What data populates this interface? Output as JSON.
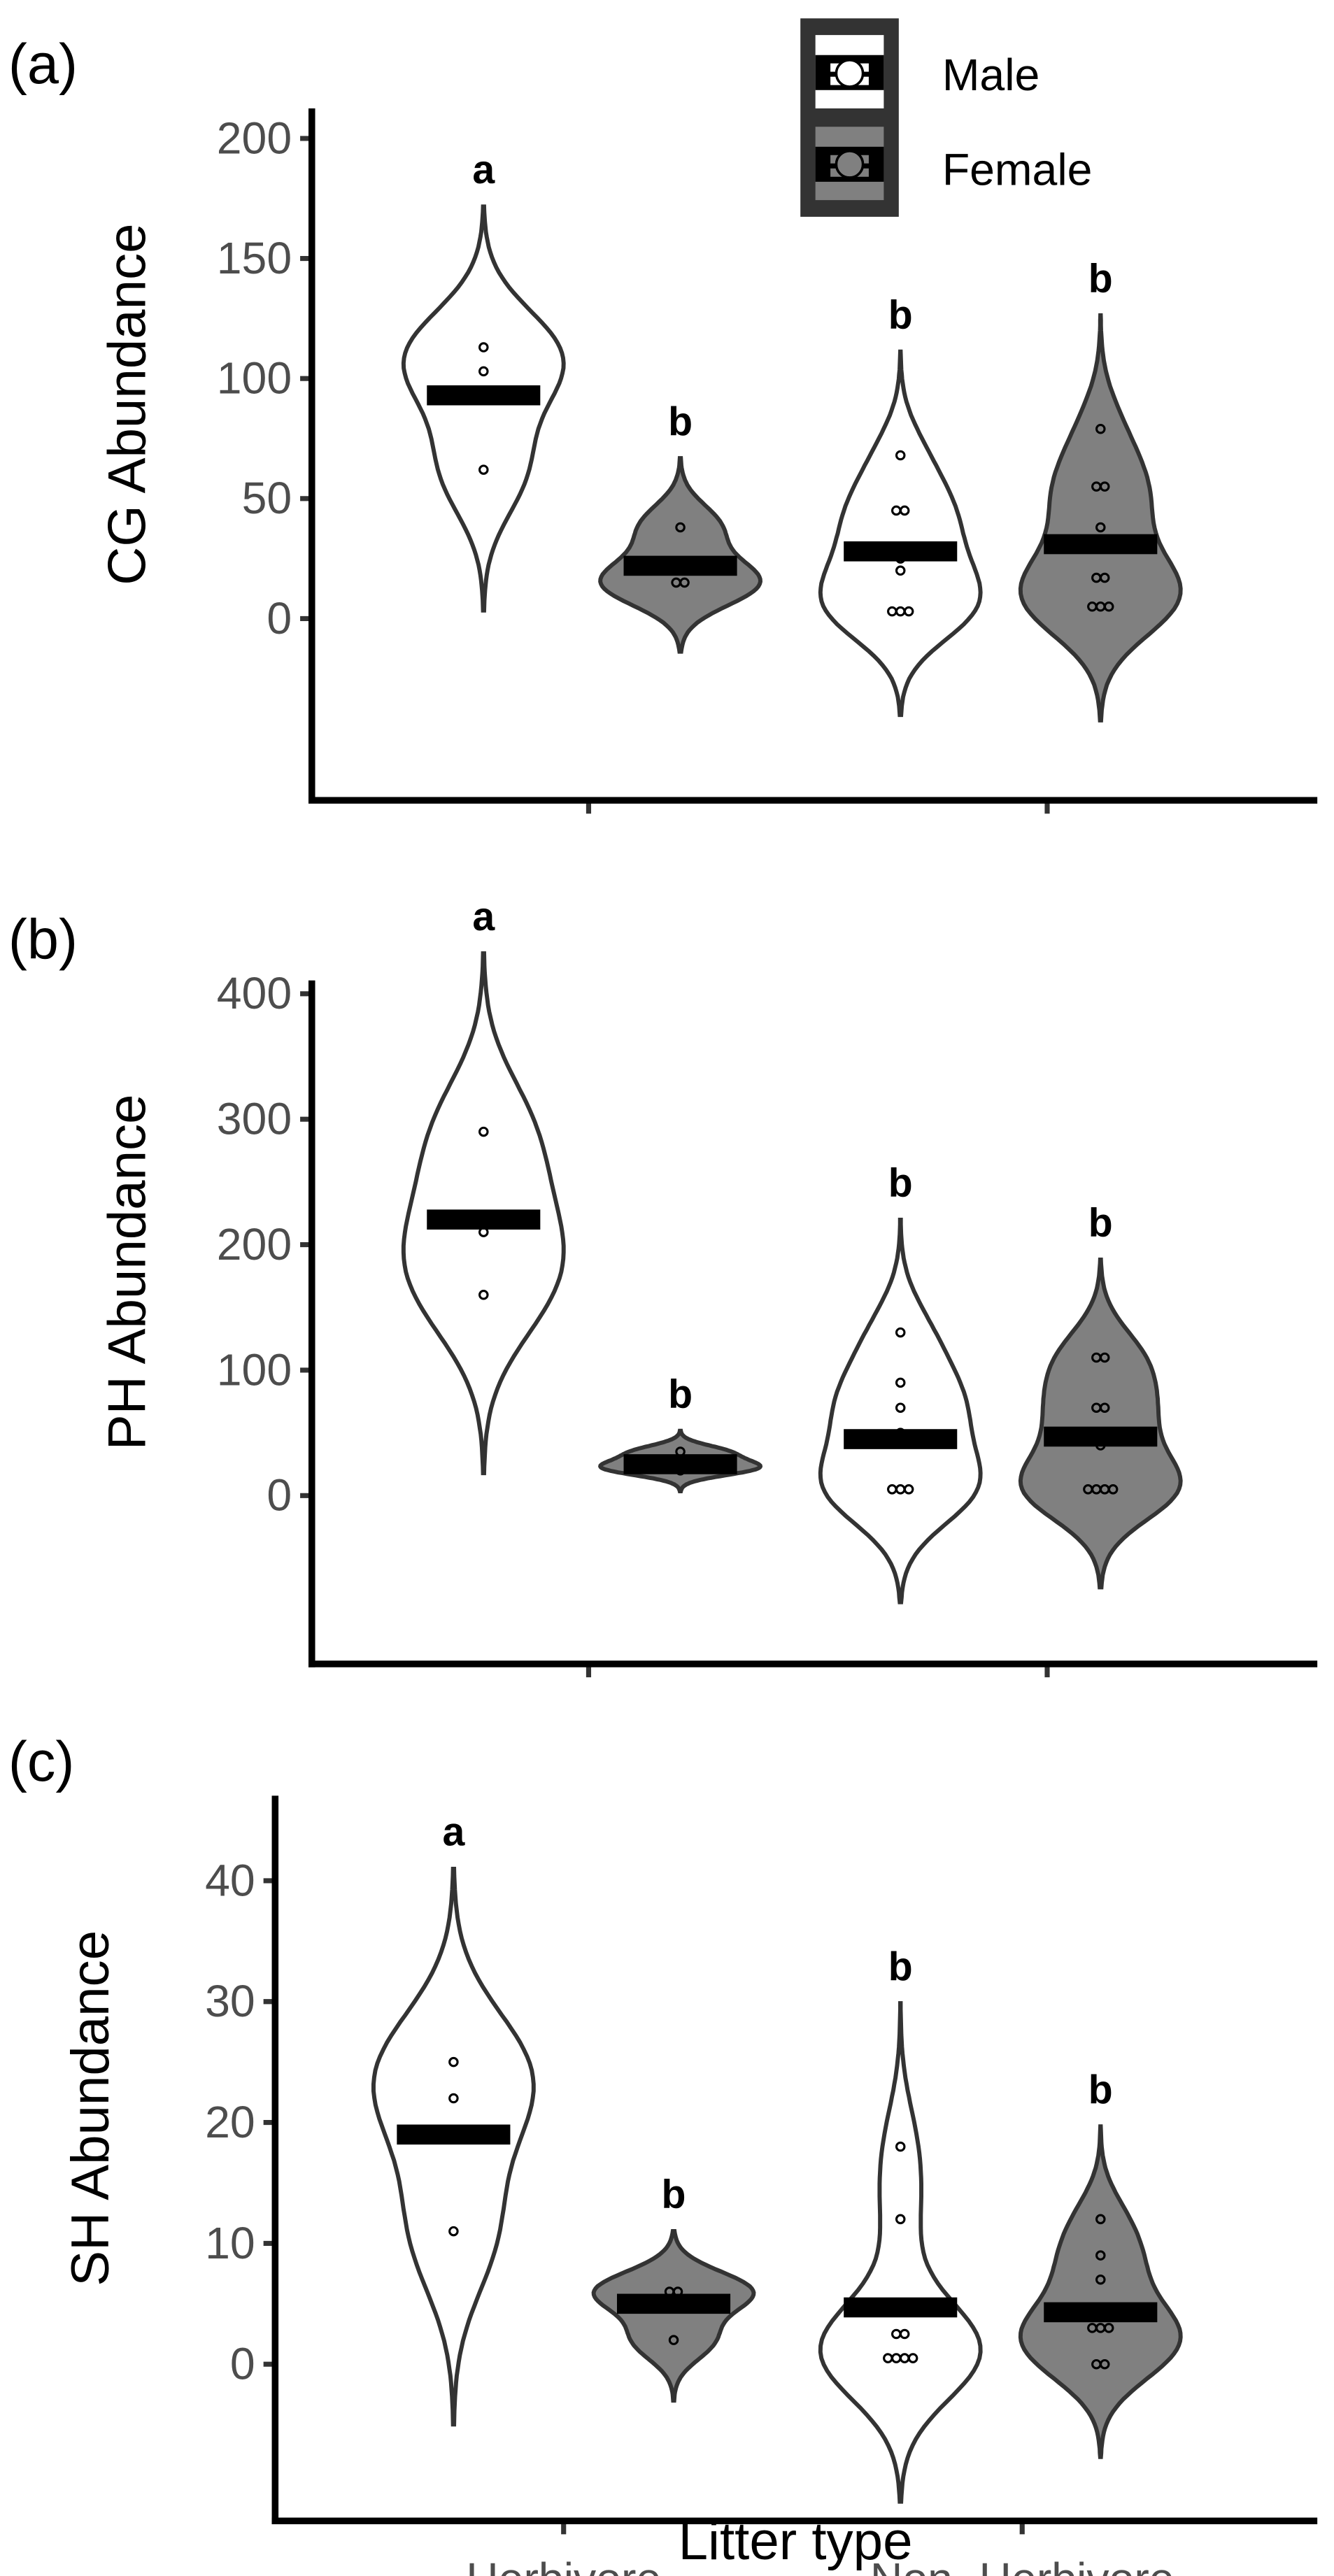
{
  "legend": {
    "items": [
      {
        "label": "Male",
        "fill": "#ffffff"
      },
      {
        "label": "Female",
        "fill": "#808080"
      }
    ]
  },
  "colors": {
    "male": "#ffffff",
    "female": "#808080",
    "outline": "#333333",
    "median": "#000000"
  },
  "chart_data": [
    {
      "type": "violin",
      "panel_label": "(a)",
      "ylabel": "CG Abundance",
      "xlabel": "",
      "ylim": [
        -45,
        210
      ],
      "yticks": [
        0,
        50,
        100,
        150,
        200
      ],
      "categories": [
        "Herbivore",
        "Non−Herbivore"
      ],
      "series": [
        {
          "name": "Male",
          "groups": [
            {
              "category": "Herbivore",
              "median": 93,
              "letter": "a",
              "points": [
                62,
                103,
                113
              ]
            },
            {
              "category": "Non−Herbivore",
              "median": 28,
              "letter": "b",
              "points": [
                3,
                3,
                3,
                20,
                25,
                45,
                45,
                68
              ]
            }
          ]
        },
        {
          "name": "Female",
          "groups": [
            {
              "category": "Herbivore",
              "median": 22,
              "letter": "b",
              "points": [
                15,
                15,
                38
              ]
            },
            {
              "category": "Non−Herbivore",
              "median": 31,
              "letter": "b",
              "points": [
                5,
                5,
                5,
                17,
                17,
                38,
                55,
                55,
                79
              ]
            }
          ]
        }
      ]
    },
    {
      "type": "violin",
      "panel_label": "(b)",
      "ylabel": "PH Abundance",
      "xlabel": "",
      "ylim": [
        -90,
        420
      ],
      "yticks": [
        0,
        100,
        200,
        300,
        400
      ],
      "categories": [
        "Herbivore",
        "Non−Herbivore"
      ],
      "series": [
        {
          "name": "Male",
          "groups": [
            {
              "category": "Herbivore",
              "median": 220,
              "letter": "a",
              "points": [
                160,
                210,
                290
              ]
            },
            {
              "category": "Non−Herbivore",
              "median": 45,
              "letter": "b",
              "points": [
                5,
                5,
                5,
                50,
                70,
                90,
                130
              ]
            }
          ]
        },
        {
          "name": "Female",
          "groups": [
            {
              "category": "Herbivore",
              "median": 25,
              "letter": "b",
              "points": [
                20,
                25,
                35
              ]
            },
            {
              "category": "Non−Herbivore",
              "median": 47,
              "letter": "b",
              "points": [
                5,
                5,
                5,
                5,
                40,
                70,
                70,
                110,
                110
              ]
            }
          ]
        }
      ]
    },
    {
      "type": "violin",
      "panel_label": "(c)",
      "ylabel": "SH Abundance",
      "xlabel": "Litter type",
      "ylim": [
        -8,
        47
      ],
      "yticks": [
        0,
        10,
        20,
        30,
        40
      ],
      "categories": [
        "Herbivore",
        "Non−Herbivore"
      ],
      "series": [
        {
          "name": "Male",
          "groups": [
            {
              "category": "Herbivore",
              "median": 19,
              "letter": "a",
              "points": [
                11,
                22,
                25
              ]
            },
            {
              "category": "Non−Herbivore",
              "median": 4.7,
              "letter": "b",
              "points": [
                0.5,
                0.5,
                0.5,
                0.5,
                2.5,
                2.5,
                12,
                18
              ]
            }
          ]
        },
        {
          "name": "Female",
          "groups": [
            {
              "category": "Herbivore",
              "median": 5,
              "letter": "b",
              "points": [
                2,
                6,
                6
              ]
            },
            {
              "category": "Non−Herbivore",
              "median": 4.3,
              "letter": "b",
              "points": [
                0,
                0,
                3,
                3,
                3,
                7,
                9,
                12
              ]
            }
          ]
        }
      ]
    }
  ]
}
